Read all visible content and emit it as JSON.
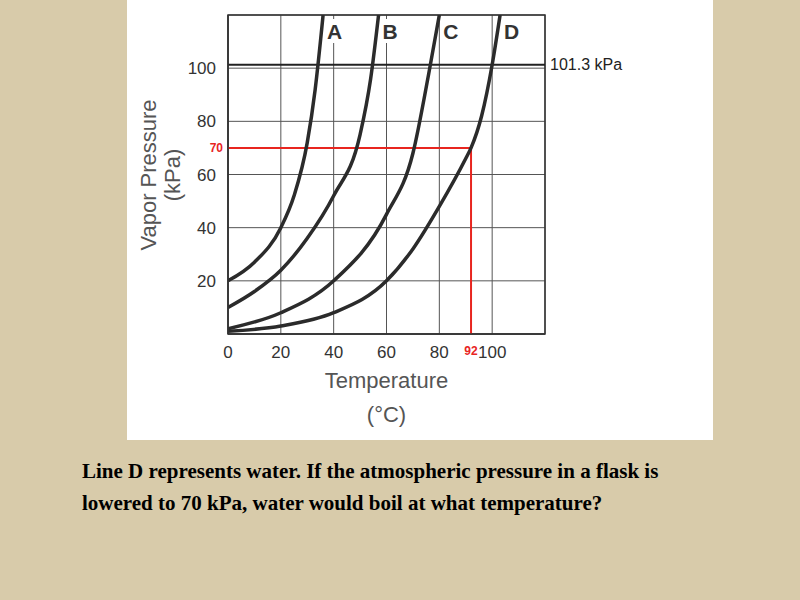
{
  "chart_data": {
    "type": "line",
    "xlabel": [
      "Temperature",
      "(°C)"
    ],
    "ylabel": [
      "Vapor Pressure",
      "(kPa)"
    ],
    "xlim": [
      0,
      120
    ],
    "ylim": [
      0,
      120
    ],
    "xticks": [
      0,
      20,
      40,
      60,
      80,
      100
    ],
    "yticks": [
      20,
      40,
      60,
      80,
      100
    ],
    "grid": true,
    "series": [
      {
        "name": "A",
        "color": "#2b2b2b",
        "x": [
          0,
          10,
          20,
          25,
          30,
          33,
          36
        ],
        "values": [
          20,
          27,
          40,
          52,
          72,
          92,
          120
        ]
      },
      {
        "name": "B",
        "color": "#2b2b2b",
        "x": [
          0,
          10,
          20,
          30,
          40,
          50,
          54,
          57
        ],
        "values": [
          10,
          16,
          24,
          36,
          52,
          75,
          96,
          120
        ]
      },
      {
        "name": "C",
        "color": "#2b2b2b",
        "x": [
          0,
          20,
          40,
          60,
          70,
          76,
          80
        ],
        "values": [
          2,
          8,
          20,
          45,
          68,
          98,
          120
        ]
      },
      {
        "name": "D",
        "color": "#2b2b2b",
        "x": [
          0,
          20,
          40,
          60,
          70,
          80,
          90,
          92,
          96,
          100,
          103
        ],
        "values": [
          1,
          3,
          8,
          20,
          32,
          48,
          66,
          70,
          82,
          101.3,
          120
        ]
      }
    ],
    "reference_line": {
      "y": 101.3,
      "label": "101.3 kPa",
      "color": "#222222"
    },
    "marked_point": {
      "x": 92,
      "y": 70,
      "color": "#e8251f"
    },
    "caption": "Line D represents water. If the atmospheric pressure in a flask is lowered to 70 kPa, water would boil at what temperature?"
  }
}
